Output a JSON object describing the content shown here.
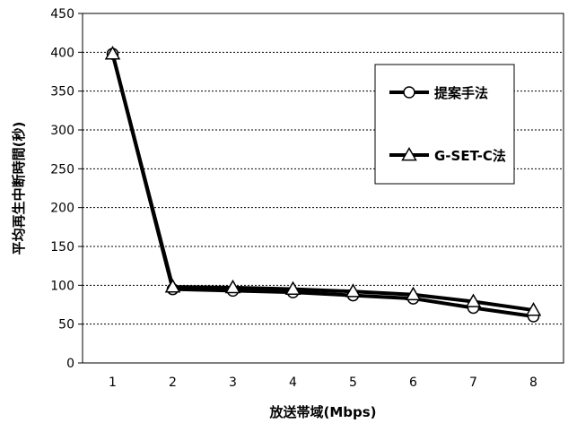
{
  "chart_data": {
    "type": "line",
    "x": [
      1,
      2,
      3,
      4,
      5,
      6,
      7,
      8
    ],
    "xlabel": "放送帯域(Mbps)",
    "ylabel": "平均再生中断時間(秒)",
    "ylim": [
      0,
      450
    ],
    "yticks": [
      0,
      50,
      100,
      150,
      200,
      250,
      300,
      350,
      400,
      450
    ],
    "xticks": [
      1,
      2,
      3,
      4,
      5,
      6,
      7,
      8
    ],
    "grid": "horizontal dotted",
    "legend_position": "right",
    "series": [
      {
        "name": "提案手法",
        "marker": "circle",
        "values": [
          398,
          95,
          93,
          91,
          87,
          83,
          71,
          60
        ]
      },
      {
        "name": "G-SET-C法",
        "marker": "triangle",
        "values": [
          398,
          98,
          97,
          95,
          92,
          88,
          79,
          68
        ]
      }
    ]
  }
}
